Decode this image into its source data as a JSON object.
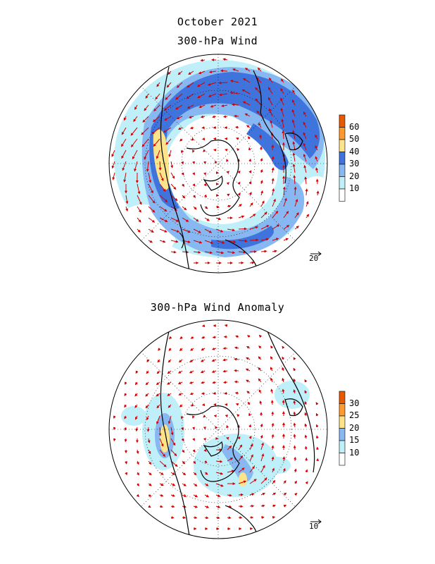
{
  "header": {
    "title": "October 2021",
    "panel1_title": "300-hPa Wind",
    "panel2_title": "300-hPa Wind Anomaly"
  },
  "panel1": {
    "colorbar": {
      "labels": [
        "60",
        "50",
        "40",
        "30",
        "20",
        "10"
      ],
      "colors": [
        "#e85a00",
        "#ff9a2e",
        "#fde38a",
        "#3f74dc",
        "#88b8f2",
        "#bff0fa",
        "#ffffff"
      ]
    },
    "reference_vector": "20"
  },
  "panel2": {
    "colorbar": {
      "labels": [
        "30",
        "25",
        "20",
        "15",
        "10"
      ],
      "colors": [
        "#e85a00",
        "#ff9a2e",
        "#fde38a",
        "#88b8f2",
        "#bff0fa",
        "#ffffff"
      ]
    },
    "reference_vector": "10"
  },
  "style": {
    "vector_color": "#d40000",
    "coast_color": "#000000"
  }
}
